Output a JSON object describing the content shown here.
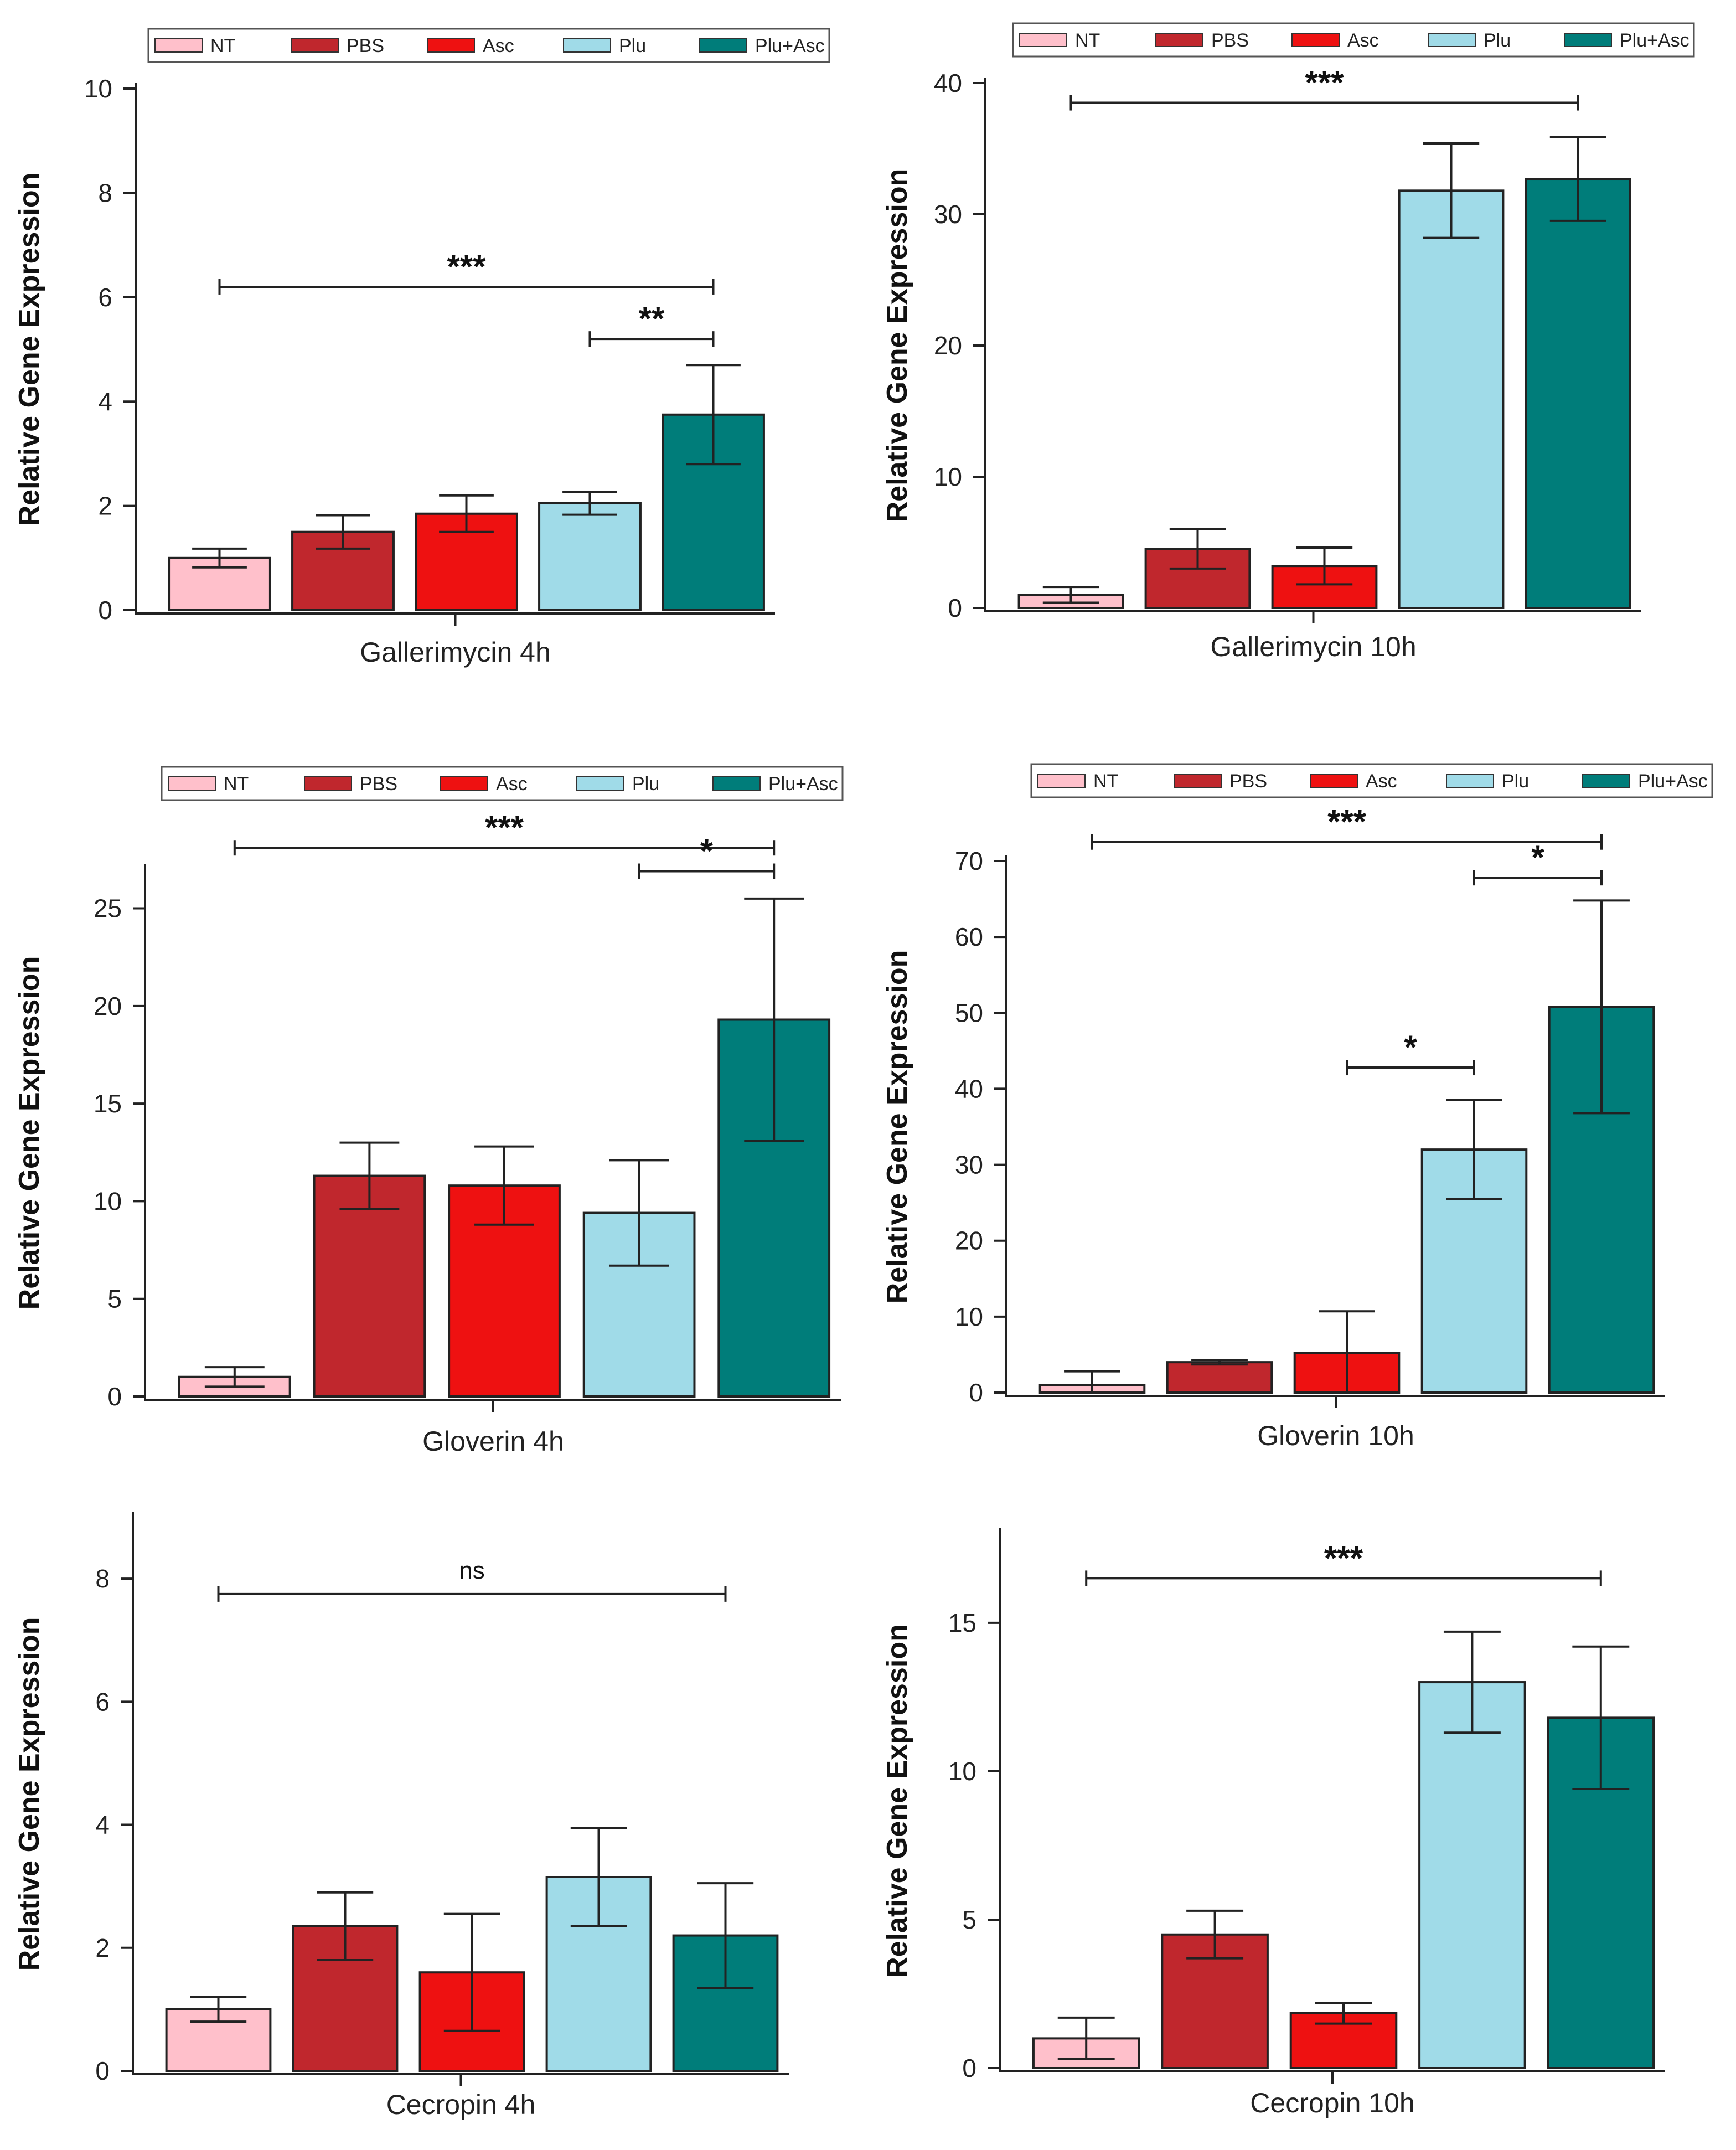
{
  "legend": {
    "items": [
      {
        "label": "NT",
        "color": "#ffc0cb"
      },
      {
        "label": "PBS",
        "color": "#c0272d"
      },
      {
        "label": "Asc",
        "color": "#ee1111"
      },
      {
        "label": "Plu",
        "color": "#a0dbe8"
      },
      {
        "label": "Plu+Asc",
        "color": "#007d7a"
      }
    ]
  },
  "chart_data": [
    {
      "type": "bar",
      "title": "Gallerimycin 4h",
      "ylabel": "Relative Gene Expression",
      "categories": [
        "NT",
        "PBS",
        "Asc",
        "Plu",
        "Plu+Asc"
      ],
      "values": [
        1.0,
        1.5,
        1.85,
        2.05,
        3.75
      ],
      "errors": [
        0.18,
        0.32,
        0.35,
        0.22,
        0.95
      ],
      "ylim": [
        0,
        10
      ],
      "yticks": [
        0,
        2,
        4,
        6,
        8,
        10
      ],
      "has_legend": true,
      "significance": [
        {
          "from": 0,
          "to": 4,
          "level": 6.2,
          "label": "***"
        },
        {
          "from": 3,
          "to": 4,
          "level": 5.2,
          "label": "**"
        }
      ]
    },
    {
      "type": "bar",
      "title": "Gallerimycin 10h",
      "ylabel": "Relative Gene Expression",
      "categories": [
        "NT",
        "PBS",
        "Asc",
        "Plu",
        "Plu+Asc"
      ],
      "values": [
        1.0,
        4.5,
        3.2,
        31.8,
        32.7
      ],
      "errors": [
        0.6,
        1.5,
        1.4,
        3.6,
        3.2
      ],
      "ylim": [
        0,
        40
      ],
      "yticks": [
        0,
        10,
        20,
        30,
        40
      ],
      "has_legend": true,
      "significance": [
        {
          "from": 0,
          "to": 4,
          "level": 38.5,
          "label": "***"
        }
      ]
    },
    {
      "type": "bar",
      "title": "Gloverin 4h",
      "ylabel": "Relative Gene Expression",
      "categories": [
        "NT",
        "PBS",
        "Asc",
        "Plu",
        "Plu+Asc"
      ],
      "values": [
        1.0,
        11.3,
        10.8,
        9.4,
        19.3
      ],
      "errors": [
        0.5,
        1.7,
        2.0,
        2.7,
        6.2
      ],
      "ylim": [
        0,
        27
      ],
      "yticks": [
        0,
        5,
        10,
        15,
        20,
        25
      ],
      "has_legend": true,
      "significance": [
        {
          "from": 0,
          "to": 4,
          "level": 28.1,
          "label": "***"
        },
        {
          "from": 3,
          "to": 4,
          "level": 26.9,
          "label": "*"
        }
      ]
    },
    {
      "type": "bar",
      "title": "Gloverin 10h",
      "ylabel": "Relative Gene Expression",
      "categories": [
        "NT",
        "PBS",
        "Asc",
        "Plu",
        "Plu+Asc"
      ],
      "values": [
        1.0,
        4.0,
        5.2,
        32.0,
        50.8
      ],
      "errors": [
        1.8,
        0.3,
        5.5,
        6.5,
        14.0
      ],
      "ylim": [
        0,
        70
      ],
      "yticks": [
        0,
        10,
        20,
        30,
        40,
        50,
        60,
        70
      ],
      "has_legend": true,
      "significance": [
        {
          "from": 0,
          "to": 4,
          "level": 72.5,
          "label": "***"
        },
        {
          "from": 3,
          "to": 4,
          "level": 67.8,
          "label": "*"
        },
        {
          "from": 2,
          "to": 3,
          "level": 42.8,
          "label": "*"
        }
      ]
    },
    {
      "type": "bar",
      "title": "Cecropin 4h",
      "ylabel": "Relative Gene Expression",
      "categories": [
        "NT",
        "PBS",
        "Asc",
        "Plu",
        "Plu+Asc"
      ],
      "values": [
        1.0,
        2.35,
        1.6,
        3.15,
        2.2
      ],
      "errors": [
        0.2,
        0.55,
        0.95,
        0.8,
        0.85
      ],
      "ylim": [
        0,
        9
      ],
      "yticks": [
        0,
        2,
        4,
        6,
        8
      ],
      "has_legend": false,
      "significance": [
        {
          "from": 0,
          "to": 4,
          "level": 7.75,
          "label": "ns"
        }
      ]
    },
    {
      "type": "bar",
      "title": "Cecropin 10h",
      "ylabel": "Relative Gene Expression",
      "categories": [
        "NT",
        "PBS",
        "Asc",
        "Plu",
        "Plu+Asc"
      ],
      "values": [
        1.0,
        4.5,
        1.85,
        13.0,
        11.8
      ],
      "errors": [
        0.7,
        0.8,
        0.35,
        1.7,
        2.4
      ],
      "ylim": [
        0,
        18
      ],
      "yticks": [
        0,
        5,
        10,
        15
      ],
      "has_legend": false,
      "significance": [
        {
          "from": 0,
          "to": 4,
          "level": 16.5,
          "label": "***"
        }
      ]
    }
  ]
}
